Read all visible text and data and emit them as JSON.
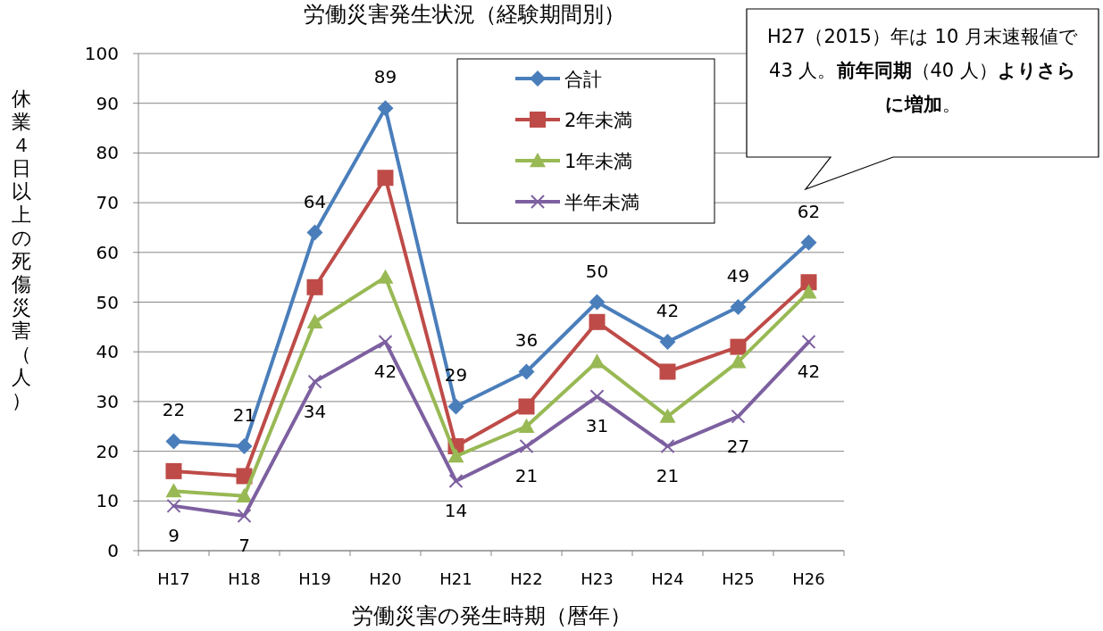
{
  "chart_data": {
    "type": "line",
    "title": "労働災害発生状況（経験期間別）",
    "xlabel": "労働災害の発生時期（暦年）",
    "ylabel": "休業４日以上の死傷災害（人）",
    "categories": [
      "H17",
      "H18",
      "H19",
      "H20",
      "H21",
      "H22",
      "H23",
      "H24",
      "H25",
      "H26"
    ],
    "ylim": [
      0,
      100
    ],
    "yticks": [
      0,
      10,
      20,
      30,
      40,
      50,
      60,
      70,
      80,
      90,
      100
    ],
    "grid": "y",
    "legend": "top",
    "annotations": [
      "H27（2015）年は 10 月末速報値で 43 人。**前年同期**（40 人）**よりさらに増加**。"
    ],
    "series": [
      {
        "name": "合計",
        "color": "#4a7ebb",
        "marker": "diamond",
        "values": [
          22,
          21,
          64,
          89,
          29,
          36,
          50,
          42,
          49,
          62
        ],
        "value_labels": [
          "22",
          "21",
          "64",
          "89",
          "29",
          "36",
          "50",
          "42",
          "49",
          "62"
        ]
      },
      {
        "name": "2年未満",
        "color": "#be4b48",
        "marker": "square",
        "values": [
          16,
          15,
          53,
          75,
          21,
          29,
          46,
          36,
          41,
          54
        ]
      },
      {
        "name": "1年未満",
        "color": "#98b954",
        "marker": "triangle",
        "values": [
          12,
          11,
          46,
          55,
          19,
          25,
          38,
          27,
          38,
          52
        ]
      },
      {
        "name": "半年未満",
        "color": "#7d60a0",
        "marker": "cross",
        "values": [
          9,
          7,
          34,
          42,
          14,
          21,
          31,
          21,
          27,
          42
        ],
        "value_labels": [
          "9",
          "7",
          "34",
          "42",
          "14",
          "21",
          "31",
          "21",
          "27",
          "42"
        ]
      }
    ]
  }
}
